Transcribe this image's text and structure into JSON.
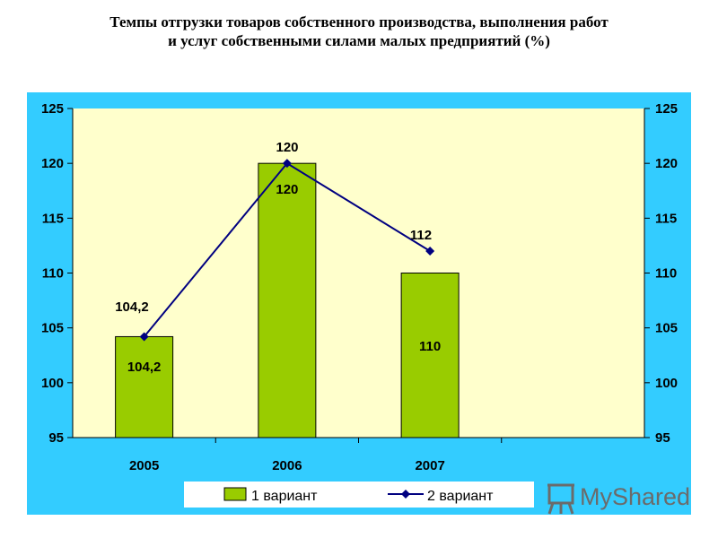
{
  "title_line1": "Темпы отгрузки товаров собственного производства, выполнения работ",
  "title_line2": "и услуг собственными силами малых предприятий (%)",
  "watermark": "MyShared",
  "colors": {
    "plot_outer": "#33ccff",
    "plot_inner": "#ffffcc",
    "bar": "#99cc00",
    "line": "#000080"
  },
  "chart_data": {
    "type": "bar+line",
    "categories": [
      "2005",
      "2006",
      "2007"
    ],
    "series": [
      {
        "name": "1 вариант",
        "type": "bar",
        "values": [
          104.2,
          120,
          110
        ],
        "labels": [
          "104,2",
          "120",
          "110"
        ]
      },
      {
        "name": "2 вариант",
        "type": "line",
        "values": [
          104.2,
          120,
          112
        ],
        "labels": [
          "104,2",
          "120",
          "112"
        ]
      }
    ],
    "ylim": [
      95,
      125
    ],
    "yticks": [
      "95",
      "100",
      "105",
      "110",
      "115",
      "120",
      "125"
    ],
    "secondary_yticks": [
      "95",
      "100",
      "105",
      "110",
      "115",
      "120",
      "125"
    ],
    "legend_position": "bottom",
    "grid": false
  }
}
